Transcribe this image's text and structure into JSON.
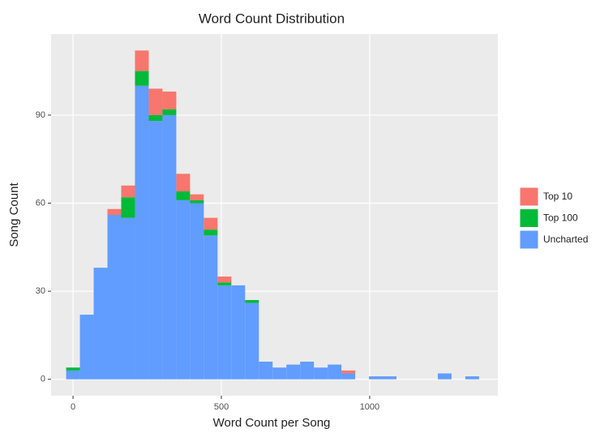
{
  "chart_data": {
    "type": "histogram",
    "title": "Word Count Distribution",
    "x_label": "Word Count per Song",
    "y_label": "Song Count",
    "bins": [
      -23.2,
      23.2,
      69.6,
      116,
      162.4,
      208.8,
      255.2,
      301.6,
      348,
      394.4,
      440.8,
      487.2,
      533.6,
      580,
      626.4,
      672.8,
      719.2,
      765.6,
      812,
      858.4,
      904.8,
      951.2,
      997.6,
      1044,
      1090.4,
      1136.8,
      1183.2,
      1229.6,
      1276,
      1322.4,
      1368.8
    ],
    "series": [
      {
        "name": "Top 10",
        "color": "#F8766D",
        "values": [
          0,
          0,
          0,
          2,
          4,
          7,
          9,
          6,
          6,
          2,
          4,
          2,
          0,
          0,
          0,
          0,
          0,
          0,
          0,
          0,
          1,
          0,
          0,
          0,
          0,
          0,
          0,
          0,
          0,
          0
        ]
      },
      {
        "name": "Top 100",
        "color": "#00BA38",
        "values": [
          1,
          0,
          0,
          0,
          7,
          5,
          2,
          2,
          3,
          1,
          2,
          1,
          0,
          1,
          0,
          0,
          0,
          0,
          0,
          0,
          0,
          0,
          0,
          0,
          0,
          0,
          0,
          0,
          0,
          0
        ]
      },
      {
        "name": "Uncharted",
        "color": "#619CFF",
        "values": [
          3,
          22,
          38,
          56,
          55,
          100,
          88,
          90,
          61,
          60,
          49,
          32,
          32,
          26,
          6,
          4,
          5,
          6,
          4,
          5,
          2,
          0,
          1,
          1,
          0,
          0,
          0,
          2,
          0,
          1
        ]
      }
    ],
    "xlim": [
      -74,
      1432
    ],
    "ylim": [
      -5.6,
      117.6
    ],
    "xticks": [
      0,
      500,
      1000
    ],
    "yticks": [
      0,
      30,
      60,
      90
    ],
    "grid": true,
    "legend": "right"
  }
}
